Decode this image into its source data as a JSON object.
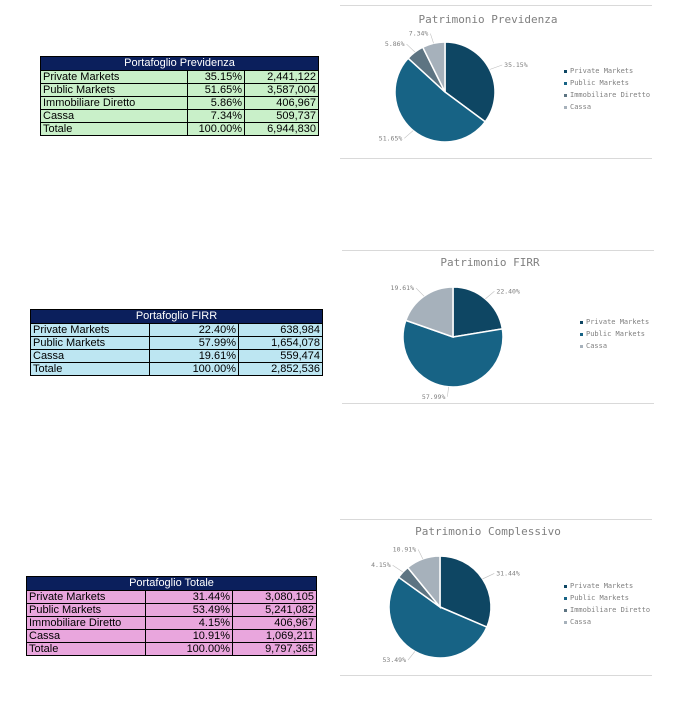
{
  "tables": [
    {
      "title": "Portafoglio Previdenza",
      "rows": [
        {
          "label": "Private Markets",
          "pct": "35.15%",
          "value": "2,441,122"
        },
        {
          "label": "Public Markets",
          "pct": "51.65%",
          "value": "3,587,004"
        },
        {
          "label": "Immobiliare Diretto",
          "pct": "5.86%",
          "value": "406,967"
        },
        {
          "label": "Cassa",
          "pct": "7.34%",
          "value": "509,737"
        },
        {
          "label": "Totale",
          "pct": "100.00%",
          "value": "6,944,830"
        }
      ]
    },
    {
      "title": "Portafoglio FIRR",
      "rows": [
        {
          "label": "Private Markets",
          "pct": "22.40%",
          "value": "638,984"
        },
        {
          "label": "Public Markets",
          "pct": "57.99%",
          "value": "1,654,078"
        },
        {
          "label": "Cassa",
          "pct": "19.61%",
          "value": "559,474"
        },
        {
          "label": "Totale",
          "pct": "100.00%",
          "value": "2,852,536"
        }
      ]
    },
    {
      "title": "Portafoglio Totale",
      "rows": [
        {
          "label": "Private Markets",
          "pct": "31.44%",
          "value": "3,080,105"
        },
        {
          "label": "Public Markets",
          "pct": "53.49%",
          "value": "5,241,082"
        },
        {
          "label": "Immobiliare Diretto",
          "pct": "4.15%",
          "value": "406,967"
        },
        {
          "label": "Cassa",
          "pct": "10.91%",
          "value": "1,069,211"
        },
        {
          "label": "Totale",
          "pct": "100.00%",
          "value": "9,797,365"
        }
      ]
    }
  ],
  "chart_data": [
    {
      "type": "pie",
      "title": "Patrimonio Previdenza",
      "slices": [
        {
          "name": "Private Markets",
          "value": 35.15,
          "label": "35.15%",
          "color": "#0e4663"
        },
        {
          "name": "Public Markets",
          "value": 51.65,
          "label": "51.65%",
          "color": "#176385"
        },
        {
          "name": "Immobiliare Diretto",
          "value": 5.86,
          "label": "5.86%",
          "color": "#5d7482"
        },
        {
          "name": "Cassa",
          "value": 7.34,
          "label": "7.34%",
          "color": "#a6b1bb"
        }
      ],
      "legend": "right"
    },
    {
      "type": "pie",
      "title": "Patrimonio FIRR",
      "slices": [
        {
          "name": "Private Markets",
          "value": 22.4,
          "label": "22.40%",
          "color": "#0e4663"
        },
        {
          "name": "Public Markets",
          "value": 57.99,
          "label": "57.99%",
          "color": "#176385"
        },
        {
          "name": "Cassa",
          "value": 19.61,
          "label": "19.61%",
          "color": "#a6b1bb"
        }
      ],
      "legend": "right"
    },
    {
      "type": "pie",
      "title": "Patrimonio Complessivo",
      "slices": [
        {
          "name": "Private Markets",
          "value": 31.44,
          "label": "31.44%",
          "color": "#0e4663"
        },
        {
          "name": "Public Markets",
          "value": 53.49,
          "label": "53.49%",
          "color": "#176385"
        },
        {
          "name": "Immobiliare Diretto",
          "value": 4.15,
          "label": "4.15%",
          "color": "#5d7482"
        },
        {
          "name": "Cassa",
          "value": 10.91,
          "label": "10.91%",
          "color": "#a6b1bb"
        }
      ],
      "legend": "right"
    }
  ]
}
